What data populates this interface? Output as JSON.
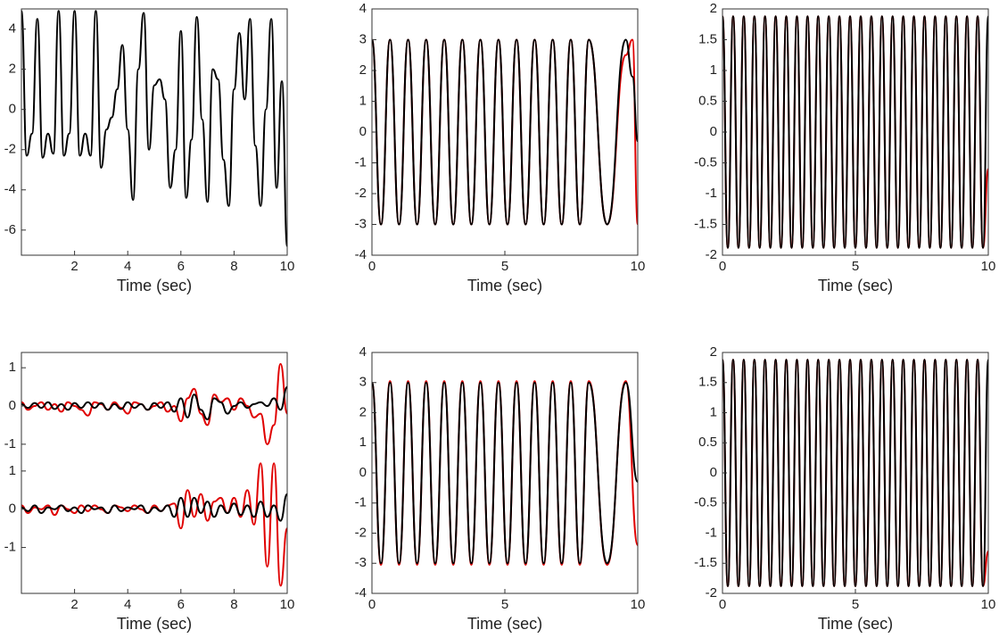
{
  "chart_data": [
    {
      "type": "line",
      "xlabel": "Time (sec)",
      "xlim": [
        0,
        10
      ],
      "ylim": [
        -7.25,
        5
      ],
      "xticks": [
        2,
        4,
        6,
        8,
        10
      ],
      "yticks": [
        -6,
        -4,
        -2,
        0,
        2,
        4
      ],
      "x": [
        0,
        0.2,
        0.4,
        0.6,
        0.8,
        1,
        1.2,
        1.4,
        1.6,
        1.8,
        2,
        2.2,
        2.4,
        2.6,
        2.8,
        3,
        3.2,
        3.4,
        3.6,
        3.8,
        4,
        4.2,
        4.4,
        4.6,
        4.8,
        5,
        5.2,
        5.4,
        5.6,
        5.8,
        6,
        6.2,
        6.4,
        6.6,
        6.8,
        7,
        7.2,
        7.4,
        7.6,
        7.8,
        8,
        8.2,
        8.4,
        8.6,
        8.8,
        9,
        9.2,
        9.4,
        9.6,
        9.8,
        10
      ],
      "series": [
        {
          "color": "#000000",
          "values": [
            4.9,
            -2.3,
            -1.2,
            4.5,
            -2.4,
            -1.2,
            -2.2,
            4.9,
            -2.3,
            -1.2,
            4.9,
            -2.3,
            -1.2,
            -2.3,
            4.9,
            -2.9,
            -1,
            -0.4,
            1,
            3.2,
            -1,
            -4.5,
            2,
            4.8,
            -2,
            1.2,
            1.5,
            0.5,
            -3.9,
            -2,
            3.9,
            -4.4,
            -1.5,
            4.6,
            -0.5,
            -4.6,
            2,
            1.5,
            -2.5,
            -4.8,
            1,
            3.8,
            0.5,
            4.5,
            -1.8,
            -4.8,
            0,
            4.5,
            -3.9,
            1.4,
            -6.8
          ]
        }
      ]
    },
    {
      "type": "line",
      "xlabel": "Time (sec)",
      "xlim": [
        0,
        10
      ],
      "ylim": [
        -4,
        4
      ],
      "xticks": [
        0,
        5,
        10
      ],
      "yticks": [
        -4,
        -3,
        -2,
        -1,
        0,
        1,
        2,
        3,
        4
      ],
      "x": [
        0,
        0.34,
        0.68,
        1.02,
        1.36,
        1.7,
        2.04,
        2.38,
        2.72,
        3.06,
        3.4,
        3.74,
        4.08,
        4.42,
        4.76,
        5.1,
        5.44,
        5.78,
        6.12,
        6.46,
        6.8,
        7.14,
        7.48,
        7.82,
        8.16,
        8.85,
        9.55,
        9.8,
        10
      ],
      "series": [
        {
          "color": "#e00000",
          "values": [
            3,
            -3,
            3,
            -3,
            3,
            -3,
            3,
            -3,
            3,
            -3,
            3,
            -3,
            3,
            -3,
            3,
            -3,
            3,
            -3,
            3,
            -3,
            3,
            -3,
            3,
            -3,
            3,
            -3,
            2.5,
            3,
            -3
          ]
        },
        {
          "color": "#000000",
          "values": [
            3,
            -3,
            3,
            -3,
            3,
            -3,
            3,
            -3,
            3,
            -3,
            3,
            -3,
            3,
            -3,
            3,
            -3,
            3,
            -3,
            3,
            -3,
            3,
            -3,
            3,
            -3,
            3,
            -3,
            3,
            1.8,
            -0.3
          ]
        }
      ]
    },
    {
      "type": "line",
      "xlabel": "Time (sec)",
      "xlim": [
        0,
        10
      ],
      "ylim": [
        -2,
        2
      ],
      "xticks": [
        0,
        5,
        10
      ],
      "yticks": [
        -2,
        -1.5,
        -1,
        -0.5,
        0,
        0.5,
        1,
        1.5,
        2
      ],
      "x": [
        0,
        0.2,
        0.4,
        0.6,
        0.8,
        1,
        1.2,
        1.4,
        1.6,
        1.8,
        2,
        2.2,
        2.4,
        2.6,
        2.8,
        3,
        3.2,
        3.4,
        3.6,
        3.8,
        4,
        4.2,
        4.4,
        4.6,
        4.8,
        5,
        5.2,
        5.4,
        5.6,
        5.8,
        6,
        6.2,
        6.4,
        6.6,
        6.8,
        7,
        7.2,
        7.4,
        7.6,
        7.8,
        8,
        8.2,
        8.4,
        8.6,
        8.8,
        9,
        9.2,
        9.4,
        9.6,
        9.8,
        10
      ],
      "series": [
        {
          "color": "#e00000",
          "values": [
            1.88,
            -1.88,
            1.88,
            -1.88,
            1.88,
            -1.88,
            1.88,
            -1.88,
            1.88,
            -1.88,
            1.88,
            -1.88,
            1.88,
            -1.88,
            1.88,
            -1.88,
            1.88,
            -1.88,
            1.88,
            -1.88,
            1.88,
            -1.88,
            1.88,
            -1.88,
            1.88,
            -1.88,
            1.88,
            -1.88,
            1.88,
            -1.88,
            1.88,
            -1.88,
            1.88,
            -1.88,
            1.88,
            -1.88,
            1.88,
            -1.88,
            1.88,
            -1.88,
            1.88,
            -1.88,
            1.88,
            -1.88,
            1.88,
            -1.88,
            1.88,
            -1.88,
            1.88,
            -1.88,
            -0.6
          ]
        },
        {
          "color": "#000000",
          "values": [
            1.88,
            -1.88,
            1.88,
            -1.88,
            1.88,
            -1.88,
            1.88,
            -1.88,
            1.88,
            -1.88,
            1.88,
            -1.88,
            1.88,
            -1.88,
            1.88,
            -1.88,
            1.88,
            -1.88,
            1.88,
            -1.88,
            1.88,
            -1.88,
            1.88,
            -1.88,
            1.88,
            -1.88,
            1.88,
            -1.88,
            1.88,
            -1.88,
            1.88,
            -1.88,
            1.88,
            -1.88,
            1.88,
            -1.88,
            1.88,
            -1.88,
            1.88,
            -1.88,
            1.88,
            -1.88,
            1.88,
            -1.88,
            1.88,
            -1.88,
            1.88,
            -1.88,
            1.88,
            -1.88,
            1.88
          ]
        }
      ]
    },
    {
      "type": "line",
      "xlabel": "Time (sec)",
      "xlim": [
        0,
        10
      ],
      "ylim": [
        -4.9,
        1.4
      ],
      "xticks": [
        2,
        4,
        6,
        8,
        10
      ],
      "yticks": [
        1,
        0,
        -1,
        {
          "value": -1.7,
          "label": "1"
        },
        {
          "value": -2.7,
          "label": "0"
        },
        {
          "value": -3.7,
          "label": "-1"
        }
      ],
      "x": [
        0,
        0.25,
        0.5,
        0.75,
        1,
        1.25,
        1.5,
        1.75,
        2,
        2.25,
        2.5,
        2.75,
        3,
        3.25,
        3.5,
        3.75,
        4,
        4.25,
        4.5,
        4.75,
        5,
        5.25,
        5.5,
        5.75,
        6,
        6.25,
        6.5,
        6.75,
        7,
        7.25,
        7.5,
        7.75,
        8,
        8.25,
        8.5,
        8.75,
        9,
        9.25,
        9.5,
        9.75,
        10
      ],
      "series": [
        {
          "color": "#e00000",
          "values": [
            0.1,
            -0.1,
            0,
            0.1,
            -0.1,
            0.05,
            -0.15,
            0.1,
            0,
            -0.1,
            -0.25,
            0.1,
            0.05,
            -0.1,
            0.1,
            -0.05,
            -0.2,
            0.1,
            0.05,
            -0.1,
            0,
            0.1,
            -0.15,
            0,
            -0.4,
            0.2,
            0.45,
            -0.2,
            -0.5,
            0.3,
            0.1,
            0.2,
            -0.1,
            0.2,
            0,
            -0.3,
            -0.2,
            -1,
            -0.5,
            1.1,
            -0.2
          ]
        },
        {
          "color": "#000000",
          "values": [
            0.05,
            -0.05,
            0.08,
            -0.05,
            0.1,
            -0.08,
            0.05,
            -0.1,
            0.08,
            -0.05,
            0.1,
            -0.05,
            0.08,
            -0.1,
            0.05,
            -0.08,
            0.1,
            -0.05,
            0.05,
            -0.1,
            0.08,
            -0.05,
            0.1,
            -0.15,
            0.2,
            -0.3,
            0.3,
            -0.1,
            -0.35,
            0.2,
            0.1,
            -0.2,
            0,
            0.1,
            -0.05,
            0.05,
            0.1,
            0,
            0.2,
            -0.1,
            0.5
          ]
        },
        {
          "color": "#e00000",
          "values": [
            -2.6,
            -2.8,
            -2.65,
            -2.7,
            -2.6,
            -2.85,
            -2.6,
            -2.7,
            -2.8,
            -2.6,
            -2.75,
            -2.6,
            -2.7,
            -2.8,
            -2.6,
            -2.65,
            -2.75,
            -2.6,
            -2.7,
            -2.8,
            -2.6,
            -2.75,
            -2.6,
            -2.55,
            -3.2,
            -2.2,
            -2.9,
            -2.3,
            -3,
            -2.5,
            -2.4,
            -2.8,
            -2.4,
            -2.9,
            -2.2,
            -3.1,
            -1.5,
            -4.2,
            -1.5,
            -4.7,
            -3.2
          ]
        },
        {
          "color": "#000000",
          "values": [
            -2.65,
            -2.75,
            -2.6,
            -2.8,
            -2.65,
            -2.7,
            -2.6,
            -2.75,
            -2.65,
            -2.8,
            -2.6,
            -2.7,
            -2.65,
            -2.8,
            -2.6,
            -2.75,
            -2.65,
            -2.7,
            -2.6,
            -2.8,
            -2.65,
            -2.75,
            -2.6,
            -2.9,
            -2.4,
            -2.9,
            -2.4,
            -2.8,
            -2.5,
            -2.9,
            -2.6,
            -2.8,
            -2.55,
            -2.85,
            -2.6,
            -2.9,
            -2.5,
            -2.9,
            -2.6,
            -3,
            -2.3
          ]
        }
      ]
    },
    {
      "type": "line",
      "xlabel": "Time (sec)",
      "xlim": [
        0,
        10
      ],
      "ylim": [
        -4,
        4
      ],
      "xticks": [
        0,
        5,
        10
      ],
      "yticks": [
        -4,
        -3,
        -2,
        -1,
        0,
        1,
        2,
        3,
        4
      ],
      "x": [
        0,
        0.34,
        0.68,
        1.02,
        1.36,
        1.7,
        2.04,
        2.38,
        2.72,
        3.06,
        3.4,
        3.74,
        4.08,
        4.42,
        4.76,
        5.1,
        5.44,
        5.78,
        6.12,
        6.46,
        6.8,
        7.14,
        7.48,
        7.82,
        8.16,
        8.85,
        9.55,
        10
      ],
      "series": [
        {
          "color": "#e00000",
          "values": [
            3,
            -3.05,
            3.05,
            -3.05,
            3.05,
            -3.05,
            3.05,
            -3.05,
            3.05,
            -3.05,
            3.05,
            -3.05,
            3.05,
            -3.05,
            3.05,
            -3.05,
            3.05,
            -3.05,
            3.05,
            -3.05,
            3.05,
            -3.05,
            3.05,
            -3.05,
            3.05,
            -3.05,
            3.05,
            -2.4
          ]
        },
        {
          "color": "#000000",
          "values": [
            3,
            -3,
            3,
            -3,
            3,
            -3,
            3,
            -3,
            3,
            -3,
            3,
            -3,
            3,
            -3,
            3,
            -3,
            3,
            -3,
            3,
            -3,
            3,
            -3,
            3,
            -3,
            3,
            -3,
            3,
            -0.3
          ]
        }
      ]
    },
    {
      "type": "line",
      "xlabel": "Time (sec)",
      "xlim": [
        0,
        10
      ],
      "ylim": [
        -2,
        2
      ],
      "xticks": [
        0,
        5,
        10
      ],
      "yticks": [
        -2,
        -1.5,
        -1,
        -0.5,
        0,
        0.5,
        1,
        1.5,
        2
      ],
      "x": [
        0,
        0.2,
        0.4,
        0.6,
        0.8,
        1,
        1.2,
        1.4,
        1.6,
        1.8,
        2,
        2.2,
        2.4,
        2.6,
        2.8,
        3,
        3.2,
        3.4,
        3.6,
        3.8,
        4,
        4.2,
        4.4,
        4.6,
        4.8,
        5,
        5.2,
        5.4,
        5.6,
        5.8,
        6,
        6.2,
        6.4,
        6.6,
        6.8,
        7,
        7.2,
        7.4,
        7.6,
        7.8,
        8,
        8.2,
        8.4,
        8.6,
        8.8,
        9,
        9.2,
        9.4,
        9.6,
        9.8,
        10
      ],
      "series": [
        {
          "color": "#e00000",
          "values": [
            1.88,
            -1.88,
            1.88,
            -1.88,
            1.88,
            -1.88,
            1.88,
            -1.88,
            1.88,
            -1.88,
            1.88,
            -1.88,
            1.88,
            -1.88,
            1.88,
            -1.88,
            1.88,
            -1.88,
            1.88,
            -1.88,
            1.88,
            -1.88,
            1.88,
            -1.88,
            1.88,
            -1.88,
            1.88,
            -1.88,
            1.88,
            -1.88,
            1.88,
            -1.88,
            1.88,
            -1.88,
            1.88,
            -1.88,
            1.88,
            -1.88,
            1.88,
            -1.88,
            1.88,
            -1.88,
            1.88,
            -1.88,
            1.88,
            -1.88,
            1.88,
            -1.88,
            1.88,
            -1.88,
            -1.3
          ]
        },
        {
          "color": "#000000",
          "values": [
            1.88,
            -1.88,
            1.88,
            -1.88,
            1.88,
            -1.88,
            1.88,
            -1.88,
            1.88,
            -1.88,
            1.88,
            -1.88,
            1.88,
            -1.88,
            1.88,
            -1.88,
            1.88,
            -1.88,
            1.88,
            -1.88,
            1.88,
            -1.88,
            1.88,
            -1.88,
            1.88,
            -1.88,
            1.88,
            -1.88,
            1.88,
            -1.88,
            1.88,
            -1.88,
            1.88,
            -1.88,
            1.88,
            -1.88,
            1.88,
            -1.88,
            1.88,
            -1.88,
            1.88,
            -1.88,
            1.88,
            -1.88,
            1.88,
            -1.88,
            1.88,
            -1.88,
            1.88,
            -1.88,
            1.88
          ]
        }
      ]
    }
  ]
}
